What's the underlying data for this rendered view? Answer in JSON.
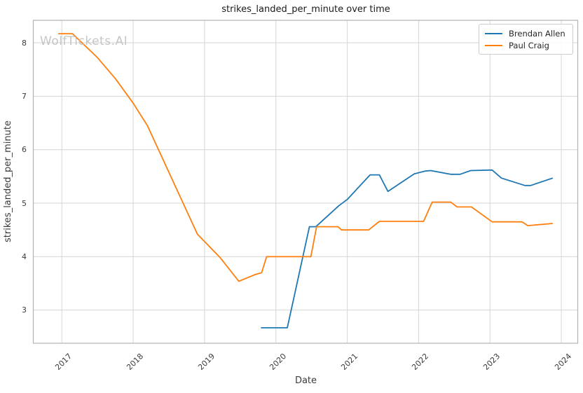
{
  "watermark": "WolfTickets.AI",
  "colors": {
    "background": "#ffffff",
    "grid": "#d6d6d6",
    "spine": "#b2b2b2",
    "tick_text": "#3b3b3b",
    "title_text": "#1a1a1a",
    "axis_label_text": "#3b3b3b",
    "watermark_text": "#c6c6c6",
    "legend_border": "#cccccc",
    "legend_text": "#262626",
    "series_blue": "#1f77b4",
    "series_orange": "#ff7f0e"
  },
  "chart_data": {
    "type": "line",
    "title": "strikes_landed_per_minute over time",
    "xlabel": "Date",
    "ylabel": "strikes_landed_per_minute",
    "grid": true,
    "legend_position": "upper right",
    "xlim": [
      2016.6,
      2024.23
    ],
    "ylim": [
      2.38,
      8.42
    ],
    "xticks": [
      2017,
      2018,
      2019,
      2020,
      2021,
      2022,
      2023,
      2024
    ],
    "yticks": [
      3,
      4,
      5,
      6,
      7,
      8
    ],
    "series": [
      {
        "name": "Brendan Allen",
        "color": "#1f77b4",
        "points": [
          [
            2019.79,
            2.67
          ],
          [
            2020.16,
            2.67
          ],
          [
            2020.47,
            4.56
          ],
          [
            2020.56,
            4.56
          ],
          [
            2020.88,
            4.95
          ],
          [
            2021.0,
            5.07
          ],
          [
            2021.32,
            5.53
          ],
          [
            2021.45,
            5.53
          ],
          [
            2021.57,
            5.22
          ],
          [
            2021.94,
            5.55
          ],
          [
            2022.09,
            5.6
          ],
          [
            2022.17,
            5.61
          ],
          [
            2022.45,
            5.54
          ],
          [
            2022.58,
            5.54
          ],
          [
            2022.73,
            5.61
          ],
          [
            2023.03,
            5.62
          ],
          [
            2023.16,
            5.47
          ],
          [
            2023.49,
            5.33
          ],
          [
            2023.57,
            5.33
          ],
          [
            2023.88,
            5.47
          ]
        ]
      },
      {
        "name": "Paul Craig",
        "color": "#ff7f0e",
        "points": [
          [
            2016.95,
            8.17
          ],
          [
            2017.15,
            8.17
          ],
          [
            2017.5,
            7.72
          ],
          [
            2017.75,
            7.33
          ],
          [
            2018.0,
            6.87
          ],
          [
            2018.2,
            6.45
          ],
          [
            2018.9,
            4.42
          ],
          [
            2019.22,
            3.98
          ],
          [
            2019.48,
            3.54
          ],
          [
            2019.7,
            3.66
          ],
          [
            2019.8,
            3.7
          ],
          [
            2019.87,
            4.0
          ],
          [
            2020.49,
            4.0
          ],
          [
            2020.57,
            4.56
          ],
          [
            2020.87,
            4.56
          ],
          [
            2020.92,
            4.5
          ],
          [
            2021.3,
            4.5
          ],
          [
            2021.45,
            4.66
          ],
          [
            2022.07,
            4.66
          ],
          [
            2022.19,
            5.02
          ],
          [
            2022.45,
            5.02
          ],
          [
            2022.54,
            4.93
          ],
          [
            2022.74,
            4.93
          ],
          [
            2023.03,
            4.65
          ],
          [
            2023.45,
            4.65
          ],
          [
            2023.53,
            4.58
          ],
          [
            2023.88,
            4.62
          ]
        ]
      }
    ]
  }
}
